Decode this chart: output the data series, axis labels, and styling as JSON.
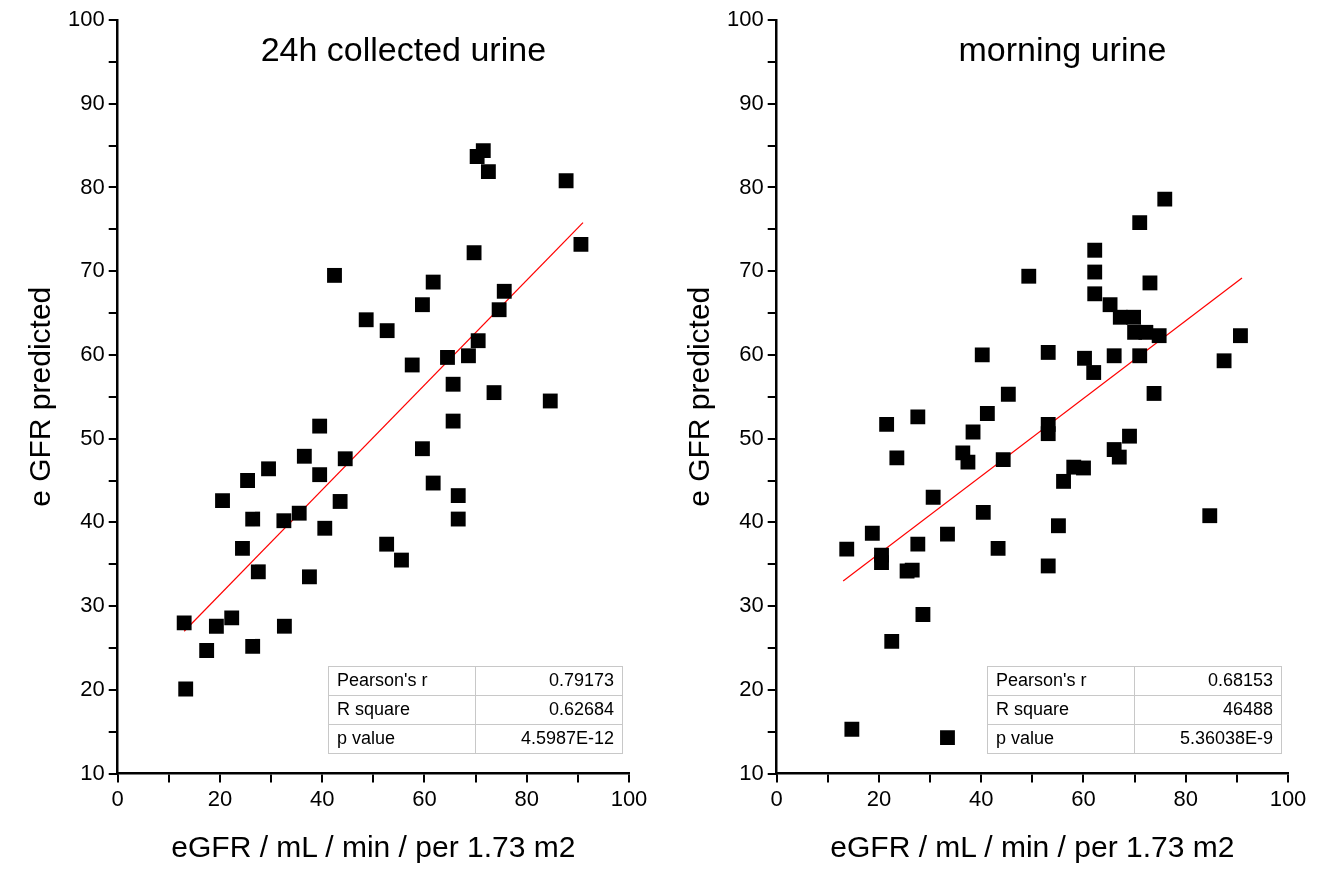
{
  "chart_data": [
    {
      "type": "scatter",
      "title": "24h collected urine",
      "xlabel": "eGFR / mL / min / per 1.73 m2",
      "ylabel": "e GFR predicted",
      "xlim": [
        0,
        100
      ],
      "ylim": [
        10,
        100
      ],
      "xticks": [
        0,
        {
          "value": 10,
          "label": null
        },
        20,
        {
          "value": 30,
          "label": null
        },
        40,
        {
          "value": 50,
          "label": null
        },
        60,
        {
          "value": 70,
          "label": null
        },
        80,
        {
          "value": 90,
          "label": null
        },
        100
      ],
      "yticks": [
        10,
        {
          "value": 15,
          "label": null
        },
        20,
        {
          "value": 25,
          "label": null
        },
        30,
        {
          "value": 35,
          "label": null
        },
        40,
        {
          "value": 45,
          "label": null
        },
        50,
        {
          "value": 55,
          "label": null
        },
        60,
        {
          "value": 65,
          "label": null
        },
        70,
        {
          "value": 75,
          "label": null
        },
        80,
        {
          "value": 85,
          "label": null
        },
        90,
        {
          "value": 95,
          "label": null
        },
        100
      ],
      "grid": false,
      "legend": false,
      "line_style": "solid",
      "series": [
        {
          "marker": "square",
          "color": "#000000",
          "x": [
            13,
            13.3,
            17.4,
            19.3,
            22.3,
            26.4,
            32.6,
            27.5,
            37.5,
            24.4,
            26.4,
            32.5,
            35.5,
            40.5,
            43.5,
            20.5,
            25.4,
            29.5,
            36.5,
            39.5,
            44.5,
            39.5,
            52.6,
            55.5,
            59.6,
            61.7,
            66.6,
            66.6,
            65.6,
            71.5,
            70.3,
            72.5,
            87.7,
            90.6,
            69.7,
            42.4,
            61.7,
            59.6,
            75.6,
            74.6,
            48.6,
            52.7,
            70.5,
            68.6,
            64.5,
            57.6,
            65.6,
            73.6,
            84.6
          ],
          "values": [
            28,
            20.1,
            24.7,
            27.6,
            28.6,
            25.2,
            27.6,
            34.1,
            33.5,
            36.9,
            40.4,
            40.2,
            41.1,
            39.3,
            42.5,
            42.6,
            45,
            46.4,
            47.9,
            45.7,
            47.6,
            51.5,
            37.4,
            35.5,
            48.8,
            44.7,
            43.2,
            40.4,
            52.1,
            84.4,
            83.7,
            81.9,
            80.8,
            73.2,
            72.2,
            69.5,
            68.7,
            66,
            67.6,
            65.4,
            64.2,
            62.9,
            61.7,
            59.9,
            59.7,
            58.8,
            56.5,
            55.5,
            54.5
          ]
        },
        {
          "type": "line",
          "marker": "none",
          "color": "#ff0000",
          "x": [
            13,
            91
          ],
          "values": [
            27,
            75.8
          ]
        }
      ],
      "annotations": [
        "Pearson's r",
        "0.79173",
        "R square",
        "0.62684",
        "p value",
        "4.5987E-12"
      ]
    },
    {
      "type": "scatter",
      "title": "morning urine",
      "xlabel": "eGFR / mL / min / per 1.73 m2",
      "ylabel": "e GFR predicted",
      "xlim": [
        0,
        100
      ],
      "ylim": [
        10,
        100
      ],
      "xticks": [
        0,
        {
          "value": 10,
          "label": null
        },
        20,
        {
          "value": 30,
          "label": null
        },
        40,
        {
          "value": 50,
          "label": null
        },
        60,
        {
          "value": 70,
          "label": null
        },
        80,
        {
          "value": 90,
          "label": null
        },
        100
      ],
      "yticks": [
        10,
        {
          "value": 15,
          "label": null
        },
        20,
        {
          "value": 25,
          "label": null
        },
        30,
        {
          "value": 35,
          "label": null
        },
        40,
        {
          "value": 45,
          "label": null
        },
        50,
        {
          "value": 55,
          "label": null
        },
        60,
        {
          "value": 65,
          "label": null
        },
        70,
        {
          "value": 75,
          "label": null
        },
        80,
        {
          "value": 85,
          "label": null
        },
        90,
        {
          "value": 95,
          "label": null
        },
        100
      ],
      "grid": false,
      "legend": false,
      "line_style": "solid",
      "series": [
        {
          "marker": "square",
          "color": "#000000",
          "x": [
            13.7,
            14.7,
            18.7,
            20.5,
            20.5,
            21.5,
            23.5,
            22.5,
            25.5,
            26.5,
            27.6,
            27.6,
            28.6,
            30.6,
            33.4,
            33.4,
            36.4,
            37.4,
            38.4,
            40.4,
            41.2,
            43.3,
            44.3,
            45.3,
            53.1,
            53.1,
            53.1,
            55.1,
            56.1,
            58.1,
            60,
            66,
            67,
            69,
            73.8,
            84.7,
            75.9,
            71,
            62.2,
            62.2,
            49.3,
            73,
            62.2,
            65.2,
            67.2,
            69.8,
            70,
            72.2,
            74.8,
            90.7,
            87.5,
            40.2,
            53.1,
            60.2,
            66,
            71,
            62
          ],
          "values": [
            36.8,
            15.3,
            38.7,
            36.1,
            35.2,
            51.7,
            47.7,
            25.8,
            34.2,
            34.3,
            52.6,
            37.4,
            29,
            43,
            38.6,
            14.3,
            48.3,
            47.2,
            50.8,
            41.2,
            53,
            36.9,
            47.5,
            55.3,
            51.7,
            50.6,
            34.8,
            39.6,
            44.9,
            46.6,
            46.5,
            48.7,
            47.8,
            50.3,
            55.4,
            40.8,
            78.6,
            75.8,
            72.5,
            69.9,
            69.4,
            68.6,
            67.3,
            66,
            64.5,
            64.5,
            62.7,
            62.7,
            62.3,
            62.3,
            59.3,
            60,
            60.3,
            59.6,
            59.9,
            59.9,
            57.9
          ]
        },
        {
          "type": "line",
          "marker": "none",
          "color": "#ff0000",
          "x": [
            13,
            91
          ],
          "values": [
            33,
            69.2
          ]
        }
      ],
      "annotations": [
        "Pearson's r",
        "0.68153",
        "R square",
        "46488",
        "p value",
        "5.36038E-9"
      ]
    }
  ]
}
